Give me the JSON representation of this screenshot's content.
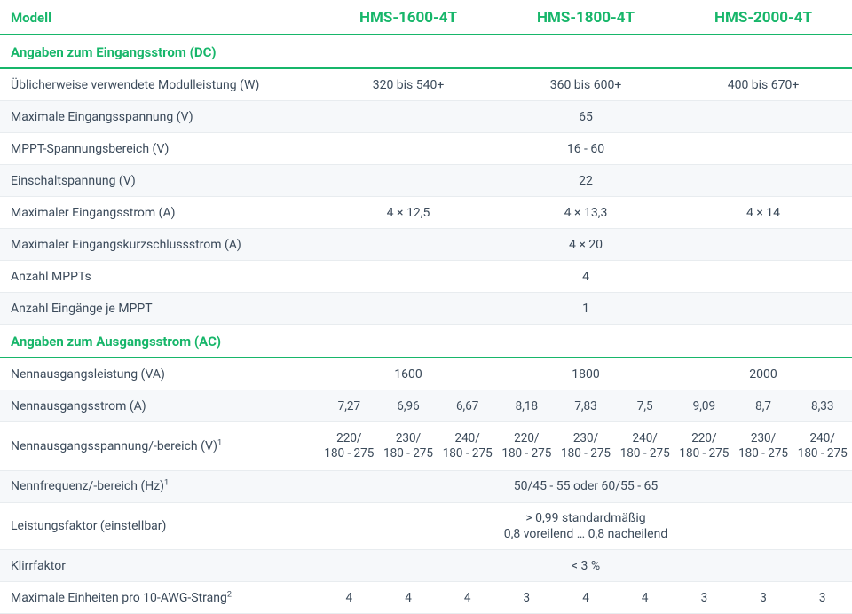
{
  "colors": {
    "accent": "#17b66a",
    "text": "#3b4a5a",
    "shade": "#f6f8fa",
    "rule": "#e8ecef",
    "bg": "#ffffff"
  },
  "header": {
    "label": "Modell",
    "models": [
      "HMS-1600-4T",
      "HMS-1800-4T",
      "HMS-2000-4T"
    ]
  },
  "sections": {
    "dc": "Angaben zum Eingangsstrom (DC)",
    "ac": "Angaben zum Ausgangsstrom (AC)"
  },
  "rows": {
    "module_power": {
      "label": "Üblicherweise verwendete Modulleistung (W)",
      "v": [
        "320 bis 540+",
        "360 bis 600+",
        "400 bis 670+"
      ]
    },
    "max_vin": {
      "label": "Maximale Eingangsspannung (V)",
      "all": "65"
    },
    "mppt_range": {
      "label": "MPPT-Spannungsbereich (V)",
      "all": "16 - 60"
    },
    "start_v": {
      "label": "Einschaltspannung (V)",
      "all": "22"
    },
    "max_iin": {
      "label": "Maximaler Eingangsstrom (A)",
      "v": [
        "4 × 12,5",
        "4 × 13,3",
        "4 × 14"
      ]
    },
    "max_isc": {
      "label": "Maximaler Eingangskurzschlussstrom (A)",
      "all": "4 × 20"
    },
    "n_mppt": {
      "label": "Anzahl MPPTs",
      "all": "4"
    },
    "n_in_mppt": {
      "label": "Anzahl Eingänge je MPPT",
      "all": "1"
    },
    "p_out": {
      "label": "Nennausgangsleistung (VA)",
      "v": [
        "1600",
        "1800",
        "2000"
      ]
    },
    "i_out": {
      "label": "Nennausgangsstrom (A)",
      "v9": [
        "7,27",
        "6,96",
        "6,67",
        "8,18",
        "7,83",
        "7,5",
        "9,09",
        "8,7",
        "8,33"
      ]
    },
    "v_out": {
      "label": "Nennausgangsspannung/-bereich (V)",
      "sup": "1",
      "v9a": [
        "220/",
        "230/",
        "240/",
        "220/",
        "230/",
        "240/",
        "220/",
        "230/",
        "240/"
      ],
      "v9b": [
        "180 - 275",
        "180 - 275",
        "180 - 275",
        "180 - 275",
        "180 - 275",
        "180 - 275",
        "180 - 275",
        "180 - 275",
        "180 - 275"
      ]
    },
    "freq": {
      "label": "Nennfrequenz/-bereich (Hz)",
      "sup": "1",
      "all": "50/45 - 55 oder 60/55 - 65"
    },
    "pf": {
      "label": "Leistungsfaktor (einstellbar)",
      "all_a": "> 0,99 standardmäßig",
      "all_b": "0,8 voreilend … 0,8 nacheilend"
    },
    "thd": {
      "label": "Klirrfaktor",
      "all": "< 3 %"
    },
    "max_units": {
      "label": "Maximale Einheiten pro 10-AWG-Strang",
      "sup": "2",
      "v9": [
        "4",
        "4",
        "4",
        "3",
        "4",
        "4",
        "3",
        "3",
        "3"
      ]
    }
  }
}
